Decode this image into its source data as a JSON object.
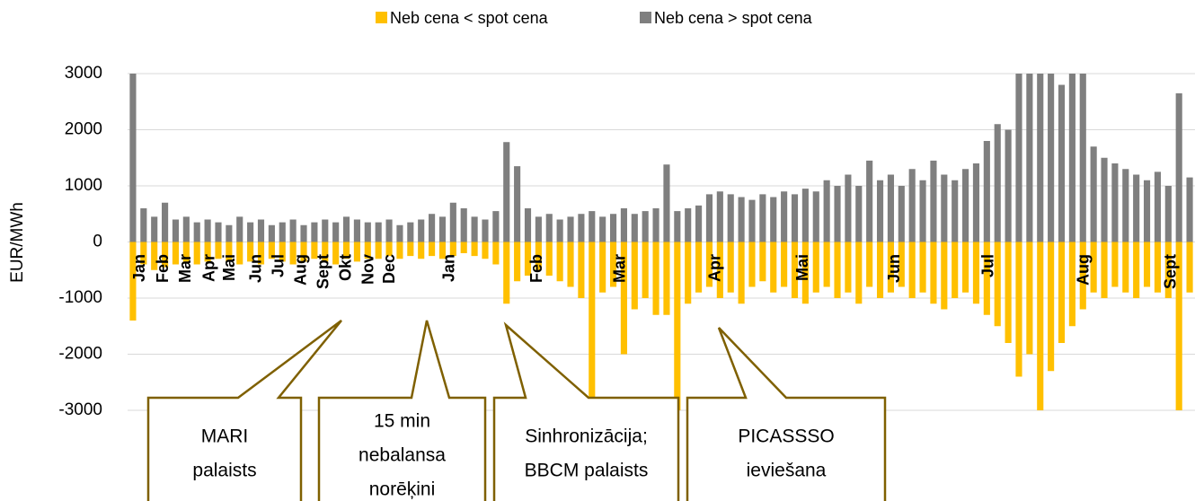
{
  "chart_data": {
    "type": "bar",
    "ylabel": "EUR/MWh",
    "x": [
      0,
      1,
      2,
      3,
      4,
      5,
      6,
      7,
      8,
      9,
      10,
      11,
      12,
      13,
      14,
      15,
      16,
      17,
      18,
      19,
      20,
      21,
      22,
      23,
      24,
      25,
      26,
      27,
      28,
      29,
      30,
      31,
      32,
      33,
      34,
      35,
      36,
      37,
      38,
      39,
      40,
      41,
      42,
      43,
      44,
      45,
      46,
      47,
      48,
      49,
      50,
      51,
      52,
      53,
      54,
      55,
      56,
      57,
      58,
      59,
      60,
      61,
      62,
      63,
      64,
      65,
      66,
      67,
      68,
      69,
      70,
      71,
      72,
      73,
      74,
      75,
      76,
      77,
      78,
      79,
      80,
      81,
      82,
      83,
      84,
      85,
      86,
      87,
      88,
      89,
      90,
      91,
      92,
      93,
      94,
      95,
      96,
      97,
      98,
      99
    ],
    "series": [
      {
        "name": "Neb cena < spot cena",
        "color": "#ffc000",
        "values": [
          -1400,
          -400,
          -500,
          -450,
          -400,
          -350,
          -400,
          -350,
          -300,
          -350,
          -400,
          -350,
          -400,
          -300,
          -350,
          -400,
          -350,
          -300,
          -350,
          -400,
          -300,
          -350,
          -300,
          -300,
          -250,
          -300,
          -250,
          -300,
          -250,
          -300,
          -250,
          -200,
          -250,
          -300,
          -400,
          -1100,
          -700,
          -600,
          -500,
          -600,
          -700,
          -800,
          -1000,
          -3000,
          -900,
          -800,
          -2000,
          -1200,
          -1000,
          -1300,
          -1300,
          -3000,
          -1100,
          -900,
          -800,
          -1000,
          -900,
          -1100,
          -800,
          -700,
          -900,
          -800,
          -1000,
          -1100,
          -900,
          -800,
          -1000,
          -900,
          -1100,
          -800,
          -1000,
          -900,
          -800,
          -1000,
          -900,
          -1100,
          -1200,
          -1000,
          -900,
          -1100,
          -1300,
          -1500,
          -1800,
          -2400,
          -2000,
          -3000,
          -2300,
          -1800,
          -1500,
          -1200,
          -900,
          -1000,
          -800,
          -900,
          -1000,
          -800,
          -900,
          -1000,
          -3000,
          -900
        ]
      },
      {
        "name": "Neb cena > spot cena",
        "color": "#7f7f7f",
        "values": [
          3000,
          600,
          450,
          700,
          400,
          450,
          350,
          400,
          350,
          300,
          450,
          350,
          400,
          300,
          350,
          400,
          300,
          350,
          400,
          350,
          450,
          400,
          350,
          350,
          400,
          300,
          350,
          400,
          500,
          450,
          700,
          600,
          450,
          400,
          550,
          1780,
          1350,
          600,
          450,
          500,
          400,
          450,
          500,
          550,
          450,
          500,
          600,
          500,
          550,
          600,
          1380,
          550,
          600,
          650,
          850,
          900,
          850,
          800,
          750,
          850,
          800,
          900,
          850,
          950,
          900,
          1100,
          1000,
          1200,
          1000,
          1450,
          1100,
          1200,
          1000,
          1300,
          1100,
          1450,
          1200,
          1100,
          1300,
          1400,
          1800,
          2100,
          2000,
          3000,
          3000,
          3000,
          3000,
          2800,
          3000,
          3000,
          1700,
          1500,
          1400,
          1300,
          1200,
          1100,
          1250,
          1000,
          2650,
          1150
        ]
      }
    ],
    "xlim": [
      0,
      100
    ],
    "xticks": [
      {
        "value": 0.7,
        "label": "Jan"
      },
      {
        "value": 2.9,
        "label": "Feb"
      },
      {
        "value": 5.0,
        "label": "Mar"
      },
      {
        "value": 7.2,
        "label": "Apr"
      },
      {
        "value": 9.1,
        "label": "Mai"
      },
      {
        "value": 11.6,
        "label": "Jun"
      },
      {
        "value": 13.7,
        "label": "Jul"
      },
      {
        "value": 15.8,
        "label": "Aug"
      },
      {
        "value": 17.9,
        "label": "Sept"
      },
      {
        "value": 20.0,
        "label": "Okt"
      },
      {
        "value": 22.1,
        "label": "Nov"
      },
      {
        "value": 24.1,
        "label": "Dec"
      },
      {
        "value": 29.7,
        "label": "Jan"
      },
      {
        "value": 37.9,
        "label": "Feb"
      },
      {
        "value": 45.7,
        "label": "Mar"
      },
      {
        "value": 54.6,
        "label": "Apr"
      },
      {
        "value": 62.8,
        "label": "Mai"
      },
      {
        "value": 71.4,
        "label": "Jun"
      },
      {
        "value": 80.2,
        "label": "Jul"
      },
      {
        "value": 89.1,
        "label": "Aug"
      },
      {
        "value": 97.3,
        "label": "Sept"
      }
    ],
    "ylim": [
      -3000,
      3000
    ],
    "yticks": [
      -3000,
      -2000,
      -1000,
      0,
      1000,
      2000,
      3000
    ],
    "grid": true,
    "legend": "top",
    "annotations": [
      {
        "lines": [
          "MARI",
          "palaists"
        ],
        "x": 20.0
      },
      {
        "lines": [
          "15 min",
          "nebalansa",
          "norēķini"
        ],
        "x": 28.0
      },
      {
        "lines": [
          "Sinhronizācija;",
          "BBCM palaists"
        ],
        "x": 35.5
      },
      {
        "lines": [
          "PICASSSO",
          "ieviešana"
        ],
        "x": 55.4
      }
    ]
  }
}
